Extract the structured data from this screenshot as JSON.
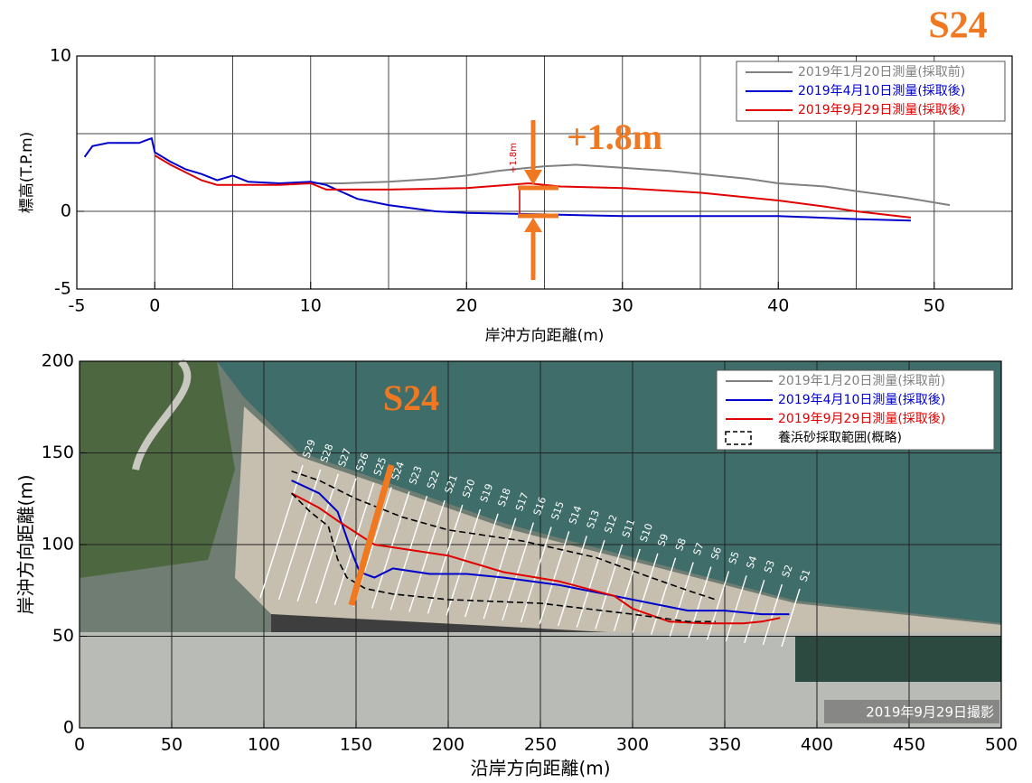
{
  "chart_data": [
    {
      "type": "line",
      "xlabel": "岸沖方向距離(m)",
      "ylabel": "標高(T.P.m)",
      "xlim": [
        -5,
        55
      ],
      "xticks": [
        -5,
        0,
        10,
        20,
        30,
        40,
        50
      ],
      "xgrid": [
        0,
        5,
        10,
        15,
        20,
        25,
        30,
        35,
        40,
        45,
        50
      ],
      "ylim": [
        -5,
        10
      ],
      "yticks": [
        -5,
        0,
        10
      ],
      "ygrid": [
        -5,
        0,
        5,
        10
      ],
      "legend": "upper right",
      "annotations": [
        "S24",
        "+1.8m",
        "+1.8m"
      ],
      "series": [
        {
          "name": "2019年1月20日測量(採取前)",
          "color": "#808080",
          "x": [
            10,
            12,
            15,
            18,
            20,
            22,
            24,
            25,
            27,
            30,
            33,
            35,
            38,
            40,
            43,
            45,
            48,
            51
          ],
          "values": [
            1.8,
            1.8,
            1.9,
            2.1,
            2.3,
            2.6,
            2.8,
            2.9,
            3.0,
            2.8,
            2.6,
            2.4,
            2.1,
            1.8,
            1.6,
            1.3,
            0.9,
            0.4
          ]
        },
        {
          "name": "2019年4月10日測量(採取後)",
          "color": "#0000cc",
          "x": [
            -4.5,
            -4,
            -3,
            -1,
            -0.5,
            -0.2,
            0,
            1,
            2,
            3,
            4,
            5,
            6,
            8,
            10,
            11,
            13,
            15,
            18,
            20,
            25,
            30,
            35,
            40,
            45,
            48.5
          ],
          "values": [
            3.5,
            4.2,
            4.4,
            4.4,
            4.6,
            4.7,
            3.8,
            3.2,
            2.7,
            2.4,
            2.0,
            2.3,
            1.9,
            1.8,
            1.9,
            1.7,
            0.8,
            0.4,
            0.0,
            -0.1,
            -0.2,
            -0.3,
            -0.3,
            -0.3,
            -0.5,
            -0.6
          ]
        },
        {
          "name": "2019年9月29日測量(採取後)",
          "color": "#e00000",
          "x": [
            0,
            1,
            2,
            3,
            4,
            6,
            8,
            10,
            11,
            15,
            20,
            24,
            26,
            30,
            35,
            40,
            43,
            45,
            48.5
          ],
          "values": [
            3.6,
            3.0,
            2.5,
            2.0,
            1.7,
            1.7,
            1.7,
            1.8,
            1.4,
            1.4,
            1.5,
            1.8,
            1.6,
            1.5,
            1.2,
            0.7,
            0.3,
            0.0,
            -0.4
          ]
        }
      ]
    },
    {
      "type": "line",
      "xlabel": "沿岸方向距離(m)",
      "ylabel": "岸沖方向距離(m)",
      "xlim": [
        0,
        500
      ],
      "xticks": [
        0,
        50,
        100,
        150,
        200,
        250,
        300,
        350,
        400,
        450,
        500
      ],
      "ylim": [
        0,
        200
      ],
      "yticks": [
        0,
        50,
        100,
        150,
        200
      ],
      "grid": true,
      "legend": "upper right",
      "annotations": [
        "S24",
        "2019年9月29日撮影"
      ],
      "transects": [
        "S29",
        "S28",
        "S27",
        "S26",
        "S25",
        "S24",
        "S23",
        "S22",
        "S21",
        "S20",
        "S19",
        "S18",
        "S17",
        "S16",
        "S15",
        "S14",
        "S13",
        "S12",
        "S11",
        "S10",
        "S9",
        "S8",
        "S7",
        "S6",
        "S5",
        "S4",
        "S3",
        "S2",
        "S1"
      ],
      "series": [
        {
          "name": "2019年1月20日測量(採取前)",
          "color": "#808080",
          "x": [
            115,
            130,
            140,
            148,
            152,
            160,
            170,
            190,
            210
          ],
          "values": [
            135,
            128,
            118,
            95,
            85,
            82,
            87,
            84,
            84
          ]
        },
        {
          "name": "2019年4月10日測量(採取後)",
          "color": "#0000cc",
          "x": [
            115,
            130,
            140,
            148,
            152,
            160,
            170,
            190,
            210,
            230,
            260,
            290,
            310,
            330,
            350,
            370,
            385
          ],
          "values": [
            135,
            128,
            118,
            95,
            85,
            82,
            87,
            84,
            84,
            82,
            78,
            72,
            68,
            64,
            64,
            62,
            62
          ]
        },
        {
          "name": "2019年9月29日測量(採取後)",
          "color": "#e00000",
          "x": [
            115,
            130,
            140,
            160,
            180,
            200,
            230,
            260,
            290,
            300,
            320,
            340,
            360,
            370,
            380
          ],
          "values": [
            128,
            120,
            113,
            100,
            97,
            94,
            85,
            80,
            72,
            65,
            58,
            57,
            57,
            58,
            60
          ]
        },
        {
          "name": "養浜砂採取範囲(概略)",
          "color": "#000000",
          "style": "dashed",
          "x": [
            115,
            130,
            150,
            175,
            200,
            240,
            280,
            310,
            330,
            345,
            null,
            115,
            125,
            135,
            140,
            145,
            155,
            170,
            200,
            250,
            300,
            330,
            345
          ],
          "values": [
            140,
            135,
            125,
            115,
            108,
            102,
            93,
            82,
            75,
            70,
            null,
            128,
            118,
            110,
            92,
            82,
            76,
            73,
            70,
            68,
            62,
            58,
            58
          ]
        }
      ]
    }
  ]
}
